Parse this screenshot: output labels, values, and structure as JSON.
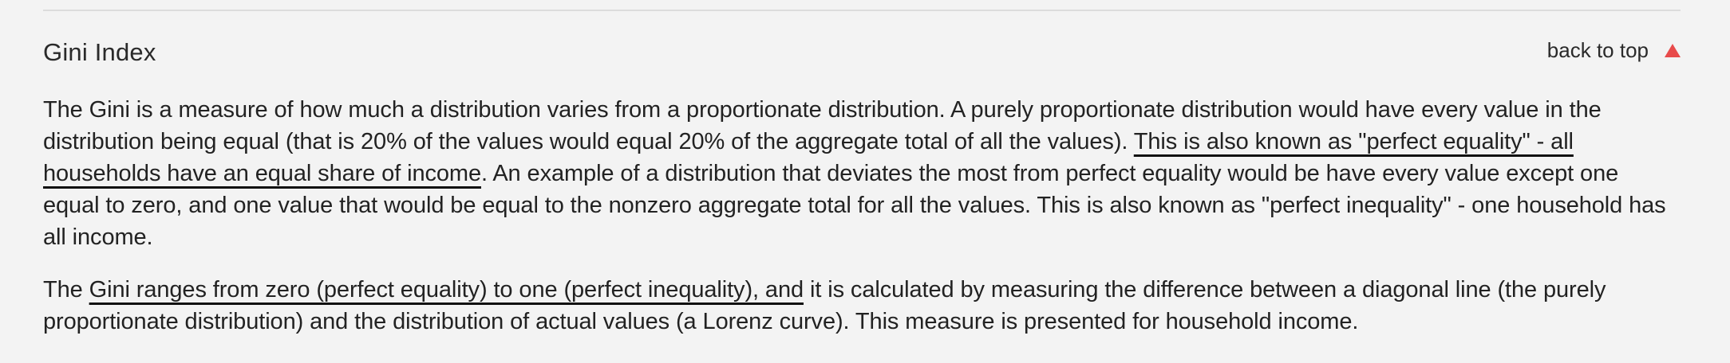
{
  "section": {
    "title": "Gini Index",
    "back_to_top": "back to top",
    "back_to_top_icon": "arrow-up-icon",
    "icon_color": "#e84b4b"
  },
  "paragraphs": [
    {
      "p1_a": "The Gini is a measure of how much a distribution varies from a proportionate distribution. A purely proportionate distribution would have every value in the distribution being equal (that is 20% of the values would equal 20% of the aggregate total of all the values). ",
      "p1_b": "This is also known as \"perfect equality\" - all households have an equal share of income",
      "p1_c": ". An example of a distribution that deviates the most from perfect equality would be have every value except one equal to zero, and one value that would be equal to the nonzero aggregate total for all the values. This is also known as \"perfect inequality\" - one household has all income."
    },
    {
      "p2_a": "The ",
      "p2_b": "Gini ranges from zero (perfect equality) to one (perfect inequality), and",
      "p2_c": " it is calculated by measuring the difference between a diagonal line (the purely proportionate distribution) and the distribution of actual values (a Lorenz curve). This measure is presented for household income."
    }
  ]
}
